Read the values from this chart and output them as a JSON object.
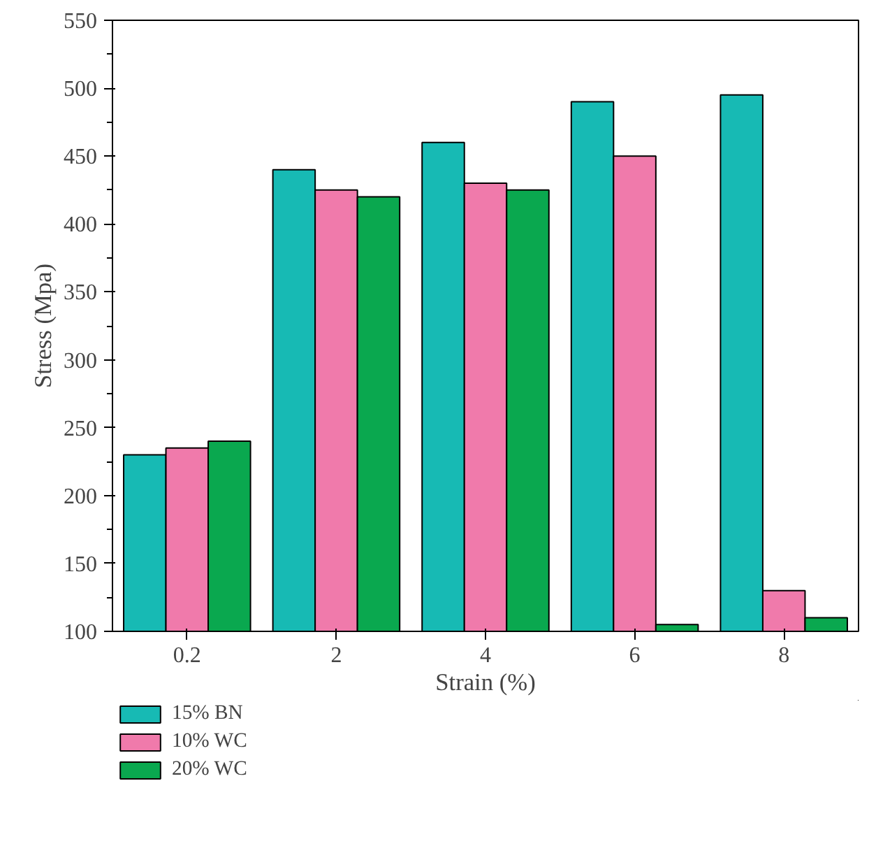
{
  "chart_data": {
    "type": "bar",
    "xlabel": "Strain (%)",
    "ylabel": "Stress (Mpa)",
    "categories": [
      "0.2",
      "2",
      "4",
      "6",
      "8"
    ],
    "series": [
      {
        "name": "15% BN",
        "color": "#17bab4",
        "values": [
          230,
          440,
          460,
          490,
          495
        ]
      },
      {
        "name": "10% WC",
        "color": "#f07aab",
        "values": [
          235,
          425,
          430,
          450,
          130
        ]
      },
      {
        "name": "20% WC",
        "color": "#0aa84f",
        "values": [
          240,
          420,
          425,
          105,
          110
        ]
      }
    ],
    "ylim": [
      100,
      550
    ],
    "yticks": [
      100,
      150,
      200,
      250,
      300,
      350,
      400,
      450,
      500,
      550
    ],
    "grid": false,
    "legend": "bottom"
  }
}
